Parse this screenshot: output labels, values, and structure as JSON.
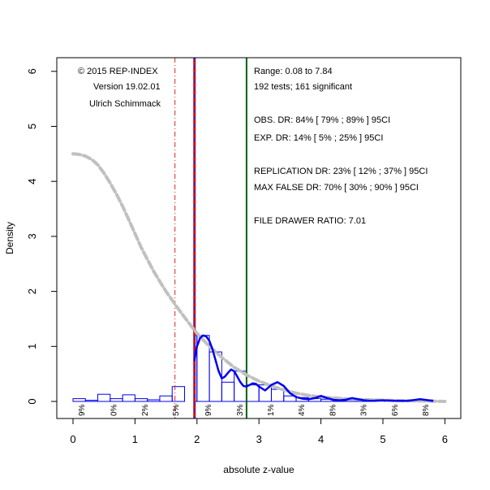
{
  "chart_data": {
    "type": "histogram",
    "xlabel": "absolute z-value",
    "ylabel": "Density",
    "xlim": [
      -0.25,
      6.25
    ],
    "ylim": [
      -0.25,
      6.25
    ],
    "x_ticks": [
      "0",
      "1",
      "2",
      "3",
      "4",
      "5",
      "6"
    ],
    "y_ticks": [
      "0",
      "1",
      "2",
      "3",
      "4",
      "5",
      "6"
    ],
    "grid": false,
    "histogram": {
      "bin_edges": [
        0,
        0.2,
        0.4,
        0.6,
        0.8,
        1.0,
        1.2,
        1.4,
        1.6,
        1.8,
        1.96,
        2.0,
        2.2,
        2.4,
        2.6,
        2.8,
        3.0,
        3.2,
        3.4,
        3.6,
        3.8,
        4.0,
        4.2,
        4.4,
        4.6,
        4.8,
        5.0,
        5.2,
        5.4,
        5.6,
        5.8,
        6.0
      ],
      "densities": [
        0.05,
        0.02,
        0.13,
        0.05,
        0.12,
        0.05,
        0.03,
        0.1,
        0.27,
        0,
        1.2,
        1.2,
        0.9,
        0.35,
        0.55,
        0.3,
        0.3,
        0.22,
        0.1,
        0.07,
        0.05,
        0.04,
        0.03,
        0.03,
        0.02,
        0.02,
        0.01,
        0.01,
        0.01,
        0.03,
        0.0
      ]
    },
    "curves": [
      {
        "style": "gray-dashed",
        "color": "#c0c0c0",
        "x": [
          0,
          0.1,
          0.2,
          0.3,
          0.4,
          0.5,
          0.6,
          0.7,
          0.8,
          0.9,
          1.0,
          1.1,
          1.2,
          1.3,
          1.4,
          1.5,
          1.6,
          1.7,
          1.8,
          1.9,
          2.0,
          2.2,
          2.4,
          2.6,
          2.8,
          3.0,
          3.2,
          3.4,
          3.6,
          3.8,
          4.0,
          4.5,
          5.0,
          5.5,
          6.0
        ],
        "y": [
          4.5,
          4.49,
          4.46,
          4.4,
          4.3,
          4.15,
          3.97,
          3.77,
          3.55,
          3.3,
          3.05,
          2.8,
          2.58,
          2.37,
          2.18,
          2.0,
          1.84,
          1.68,
          1.53,
          1.38,
          1.24,
          1.0,
          0.8,
          0.62,
          0.48,
          0.37,
          0.28,
          0.21,
          0.15,
          0.11,
          0.08,
          0.04,
          0.02,
          0.01,
          0.0
        ]
      },
      {
        "style": "blue-solid",
        "color": "#0000ee",
        "x": [
          1.96,
          2.0,
          2.05,
          2.1,
          2.15,
          2.2,
          2.25,
          2.3,
          2.35,
          2.4,
          2.45,
          2.5,
          2.55,
          2.6,
          2.65,
          2.7,
          2.75,
          2.8,
          2.85,
          2.9,
          2.95,
          3.0,
          3.1,
          3.2,
          3.3,
          3.4,
          3.5,
          3.6,
          3.7,
          3.8,
          3.9,
          4.0,
          4.1,
          4.2,
          4.3,
          4.4,
          4.5,
          4.6,
          4.7,
          4.8,
          5.0,
          5.2,
          5.4,
          5.6,
          5.8
        ],
        "y": [
          0.75,
          1.0,
          1.15,
          1.2,
          1.18,
          1.1,
          0.95,
          0.75,
          0.55,
          0.42,
          0.45,
          0.52,
          0.58,
          0.55,
          0.45,
          0.35,
          0.28,
          0.27,
          0.3,
          0.33,
          0.32,
          0.27,
          0.2,
          0.3,
          0.35,
          0.28,
          0.15,
          0.08,
          0.05,
          0.04,
          0.06,
          0.1,
          0.06,
          0.03,
          0.02,
          0.03,
          0.06,
          0.04,
          0.02,
          0.01,
          0.02,
          0.01,
          0.01,
          0.04,
          0.01
        ]
      }
    ],
    "vlines": [
      {
        "x": 1.645,
        "color": "#dd2222",
        "style": "dotdash"
      },
      {
        "x": 1.96,
        "color": "#dd0000",
        "style": "solid-thick"
      },
      {
        "x": 1.96,
        "color": "#2233dd",
        "style": "dashed"
      },
      {
        "x": 2.8,
        "color": "#006400",
        "style": "solid"
      }
    ],
    "z_labels": [
      {
        "x": 0.13,
        "text": "9%"
      },
      {
        "x": 0.65,
        "text": "0%"
      },
      {
        "x": 1.15,
        "text": "2%"
      },
      {
        "x": 1.65,
        "text": "5%"
      },
      {
        "x": 2.17,
        "text": "9%"
      },
      {
        "x": 2.68,
        "text": "3%"
      },
      {
        "x": 3.18,
        "text": "1%"
      },
      {
        "x": 3.68,
        "text": "4%"
      },
      {
        "x": 4.18,
        "text": "8%"
      },
      {
        "x": 4.68,
        "text": "3%"
      },
      {
        "x": 5.18,
        "text": "6%"
      },
      {
        "x": 5.68,
        "text": "8%"
      }
    ],
    "annotations_left": [
      "© 2015 REP-INDEX",
      "Version 19.02.01",
      "Ulrich Schimmack"
    ],
    "annotations_right": [
      "Range: 0.08 to 7.84",
      "192 tests; 161 significant",
      "OBS. DR: 84% [ 79% ; 89% ] 95CI",
      "EXP. DR: 14% [ 5% ; 25% ] 95CI",
      "REPLICATION DR: 23% [ 12% ; 37% ] 95CI",
      "MAX FALSE DR: 70% [ 30% ; 90% ] 95CI",
      "FILE DRAWER RATIO: 7.01"
    ]
  }
}
